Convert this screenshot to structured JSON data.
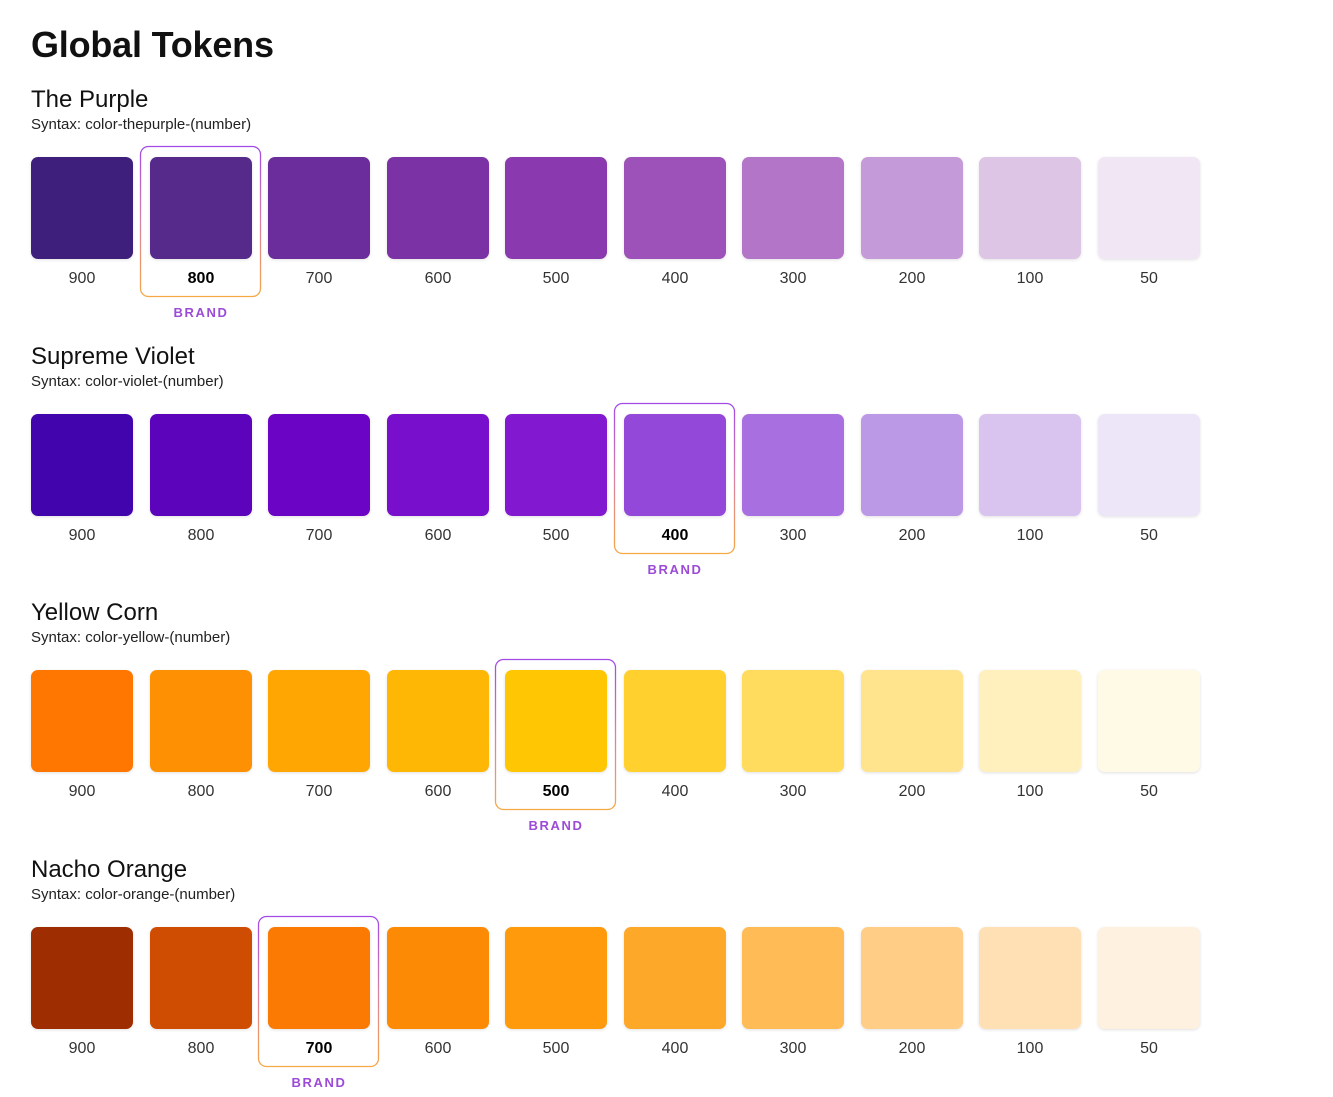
{
  "page": {
    "title": "Global Tokens"
  },
  "brand_label": "BRAND",
  "palettes": [
    {
      "name": "The Purple",
      "syntax": "Syntax: color-thepurple-(number)",
      "brand_index": 1,
      "swatches": [
        {
          "label": "900",
          "color": "#3e1f7c"
        },
        {
          "label": "800",
          "color": "#562a8b"
        },
        {
          "label": "700",
          "color": "#6a2d9b"
        },
        {
          "label": "600",
          "color": "#7b32a5"
        },
        {
          "label": "500",
          "color": "#8a39ae"
        },
        {
          "label": "400",
          "color": "#9d52ba"
        },
        {
          "label": "300",
          "color": "#b275c8"
        },
        {
          "label": "200",
          "color": "#c59ad8"
        },
        {
          "label": "100",
          "color": "#ddc5e5"
        },
        {
          "label": "50",
          "color": "#f1e7f4"
        }
      ]
    },
    {
      "name": "Supreme Violet",
      "syntax": "Syntax: color-violet-(number)",
      "brand_index": 5,
      "swatches": [
        {
          "label": "900",
          "color": "#4104ad"
        },
        {
          "label": "800",
          "color": "#5b04bc"
        },
        {
          "label": "700",
          "color": "#6c04c6"
        },
        {
          "label": "600",
          "color": "#770fcc"
        },
        {
          "label": "500",
          "color": "#8218d0"
        },
        {
          "label": "400",
          "color": "#9448d9"
        },
        {
          "label": "300",
          "color": "#a86fe0"
        },
        {
          "label": "200",
          "color": "#bc99e6"
        },
        {
          "label": "100",
          "color": "#d9c4ef"
        },
        {
          "label": "50",
          "color": "#ede6f8"
        }
      ]
    },
    {
      "name": "Yellow Corn",
      "syntax": "Syntax: color-yellow-(number)",
      "brand_index": 4,
      "swatches": [
        {
          "label": "900",
          "color": "#ff7701"
        },
        {
          "label": "800",
          "color": "#fe9103"
        },
        {
          "label": "700",
          "color": "#ffa603"
        },
        {
          "label": "600",
          "color": "#ffb705"
        },
        {
          "label": "500",
          "color": "#ffc703"
        },
        {
          "label": "400",
          "color": "#ffd02e"
        },
        {
          "label": "300",
          "color": "#ffdc5e"
        },
        {
          "label": "200",
          "color": "#ffe48d"
        },
        {
          "label": "100",
          "color": "#fff0bd"
        },
        {
          "label": "50",
          "color": "#fffae6"
        }
      ]
    },
    {
      "name": "Nacho Orange",
      "syntax": "Syntax: color-orange-(number)",
      "brand_index": 2,
      "swatches": [
        {
          "label": "900",
          "color": "#9e2e02"
        },
        {
          "label": "800",
          "color": "#cf4d03"
        },
        {
          "label": "700",
          "color": "#fa7a03"
        },
        {
          "label": "600",
          "color": "#fd8a05"
        },
        {
          "label": "500",
          "color": "#fe9a0c"
        },
        {
          "label": "400",
          "color": "#fea82a"
        },
        {
          "label": "300",
          "color": "#ffbb55"
        },
        {
          "label": "200",
          "color": "#ffcd85"
        },
        {
          "label": "100",
          "color": "#ffe0b4"
        },
        {
          "label": "50",
          "color": "#fff1e0"
        }
      ]
    }
  ]
}
